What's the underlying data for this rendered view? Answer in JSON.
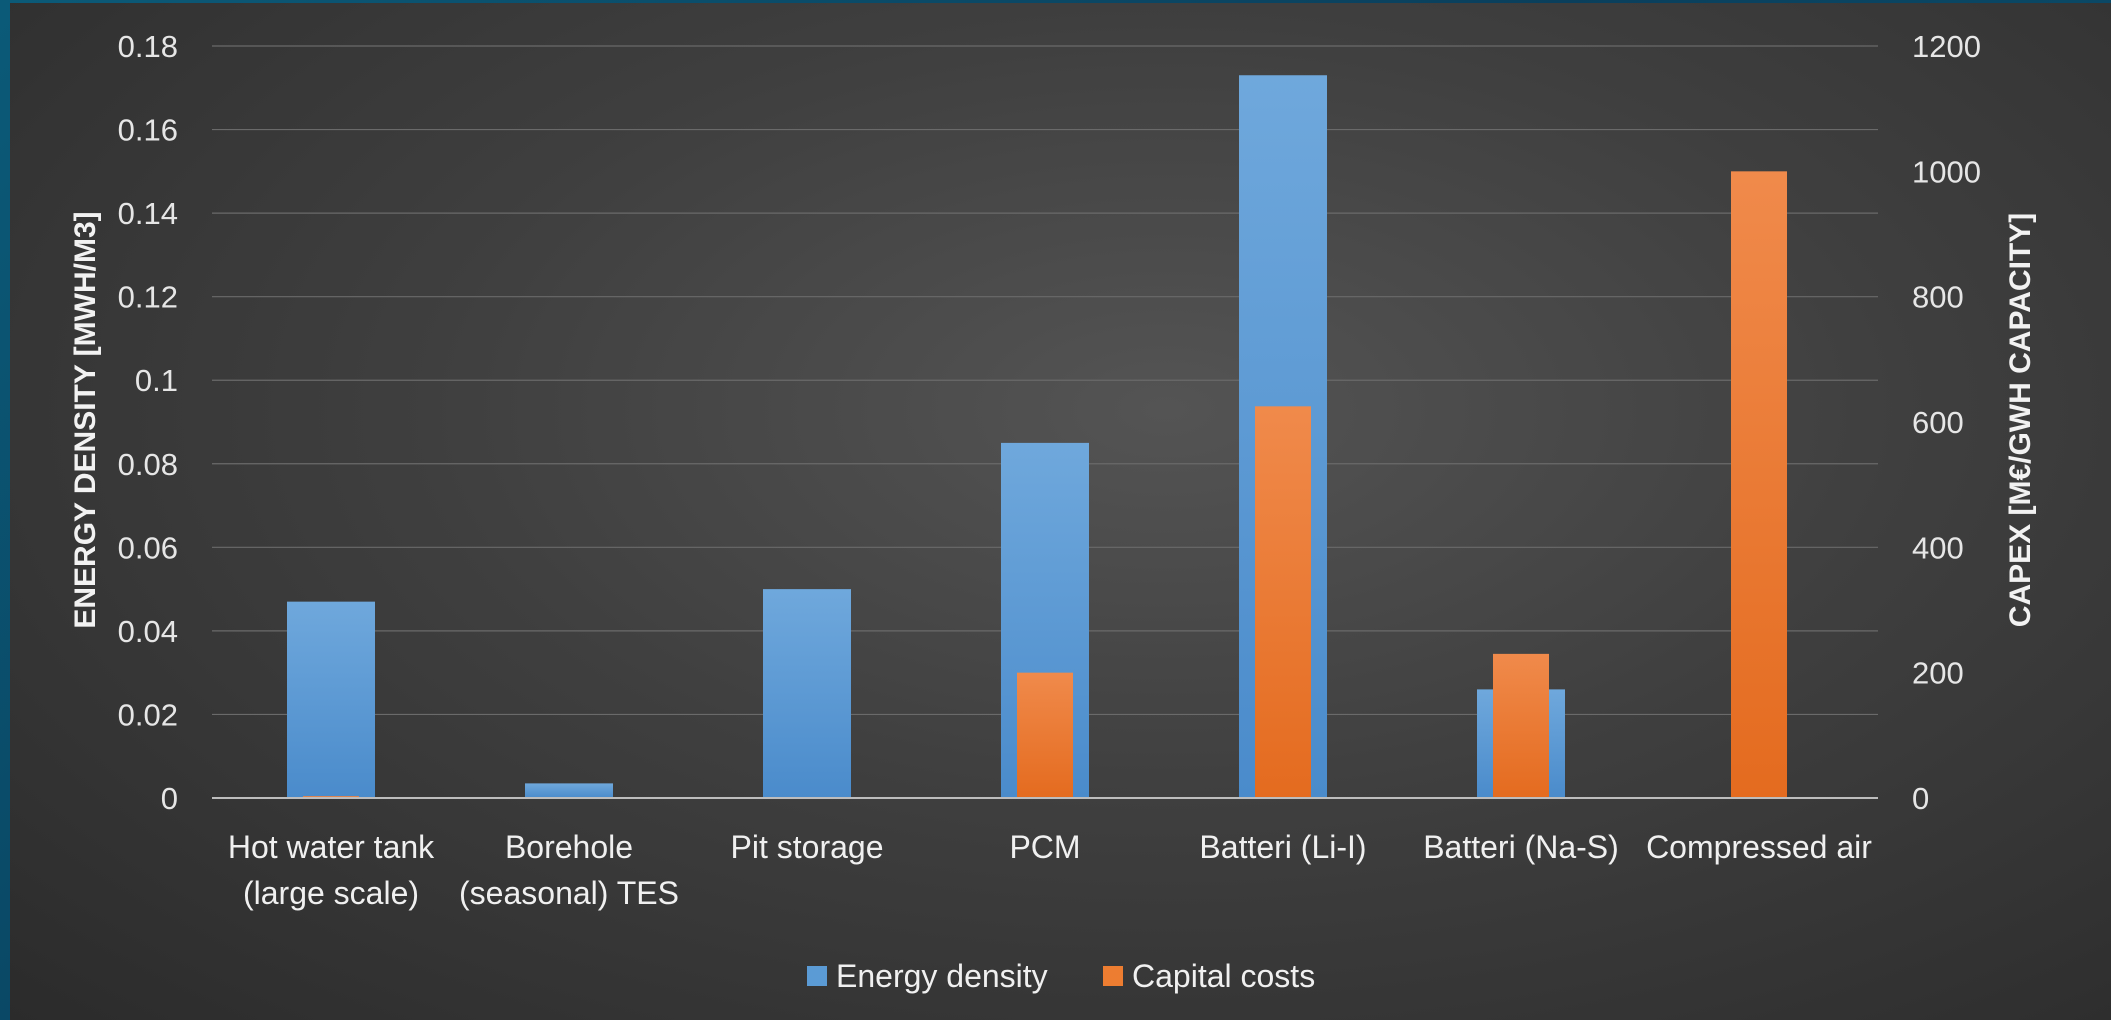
{
  "chart_data": {
    "type": "bar",
    "categories": [
      [
        "Hot water tank",
        "(large scale)"
      ],
      [
        "Borehole",
        "(seasonal) TES"
      ],
      [
        "Pit storage"
      ],
      [
        "PCM"
      ],
      [
        "Batteri (Li-I)"
      ],
      [
        "Batteri (Na-S)"
      ],
      [
        "Compressed air"
      ]
    ],
    "series": [
      {
        "name": "Energy density",
        "axis": "left",
        "color": "#5b9bd5",
        "values": [
          0.047,
          0.0035,
          0.05,
          0.085,
          0.173,
          0.026,
          null
        ]
      },
      {
        "name": "Capital costs",
        "axis": "right",
        "color": "#ed7d31",
        "values": [
          3,
          null,
          null,
          200,
          625,
          230,
          1000
        ]
      }
    ],
    "ylabel_left": "ENERGY DENSITY [MWH/M3]",
    "ylabel_right": "CAPEX [M€/GWH CAPACITY]",
    "ylim_left": [
      0,
      0.18
    ],
    "ylim_right": [
      0,
      1200
    ],
    "yticks_left": [
      "0",
      "0.02",
      "0.04",
      "0.06",
      "0.08",
      "0.1",
      "0.12",
      "0.14",
      "0.16",
      "0.18"
    ],
    "yticks_right": [
      "0",
      "200",
      "400",
      "600",
      "800",
      "1000",
      "1200"
    ],
    "grid": true,
    "legend_position": "bottom"
  }
}
